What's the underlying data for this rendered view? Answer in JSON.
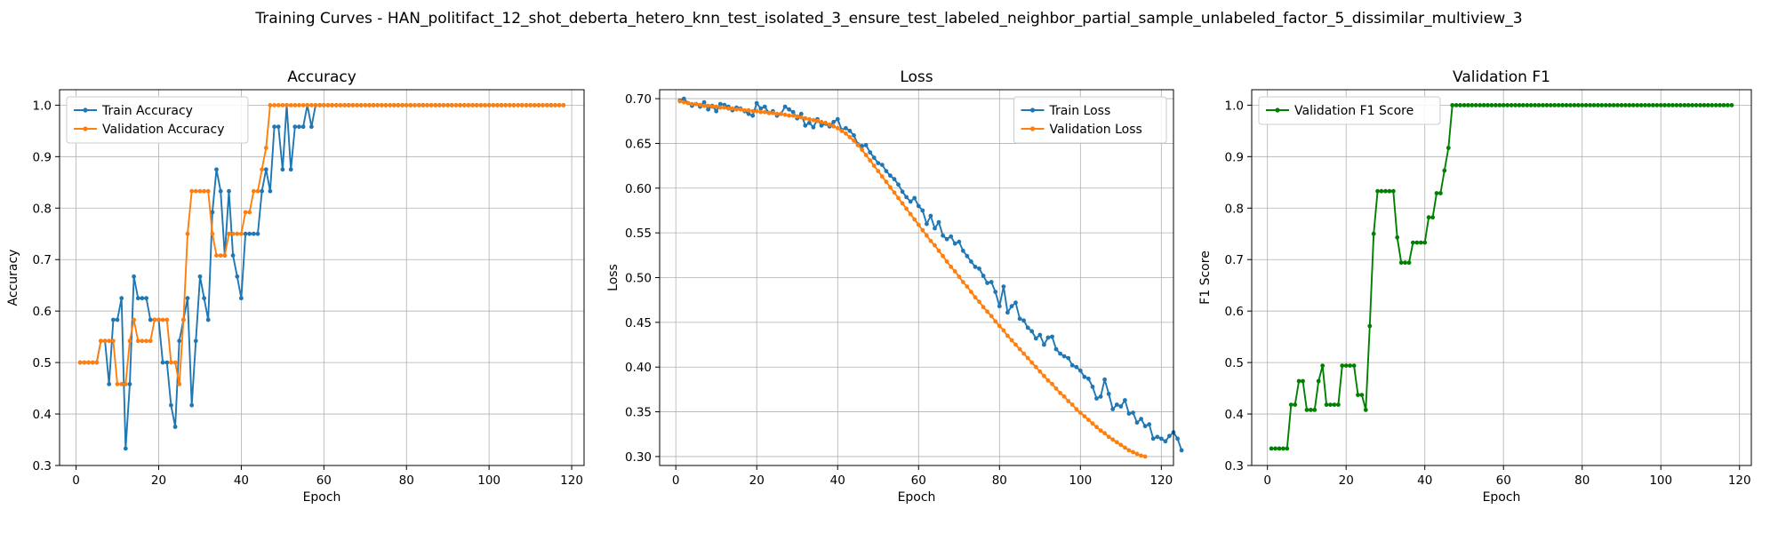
{
  "figure_title": "Training Curves - HAN_politifact_12_shot_deberta_hetero_knn_test_isolated_3_ensure_test_labeled_neighbor_partial_sample_unlabeled_factor_5_dissimilar_multiview_3",
  "colors": {
    "blue": "#1f77b4",
    "orange": "#ff7f0e",
    "green": "#008000",
    "grid": "#b0b0b0"
  },
  "chart_data": [
    {
      "type": "line",
      "title": "Accuracy",
      "xlabel": "Epoch",
      "ylabel": "Accuracy",
      "xlim": [
        -4,
        123
      ],
      "ylim": [
        0.3,
        1.03
      ],
      "xticks": [
        0,
        20,
        40,
        60,
        80,
        100,
        120
      ],
      "yticks": [
        0.3,
        0.4,
        0.5,
        0.6,
        0.7,
        0.8,
        0.9,
        1.0
      ],
      "ytick_labels": [
        "0.3",
        "0.4",
        "0.5",
        "0.6",
        "0.7",
        "0.8",
        "0.9",
        "1.0"
      ],
      "grid": true,
      "legend_position": "upper-left",
      "series": [
        {
          "name": "Train Accuracy",
          "color": "#1f77b4",
          "x_start": 1,
          "values": [
            0.5,
            0.5,
            0.5,
            0.5,
            0.5,
            0.542,
            0.542,
            0.458,
            0.583,
            0.583,
            0.625,
            0.333,
            0.458,
            0.667,
            0.625,
            0.625,
            0.625,
            0.583,
            0.583,
            0.583,
            0.5,
            0.5,
            0.417,
            0.375,
            0.542,
            0.583,
            0.625,
            0.417,
            0.542,
            0.667,
            0.625,
            0.583,
            0.792,
            0.875,
            0.833,
            0.708,
            0.833,
            0.708,
            0.667,
            0.625,
            0.75,
            0.75,
            0.75,
            0.75,
            0.833,
            0.875,
            0.833,
            0.958,
            0.958,
            0.875,
            1.0,
            0.875,
            0.958,
            0.958,
            0.958,
            1.0,
            0.958,
            1.0,
            1.0,
            1.0,
            1.0,
            1.0,
            1.0,
            1.0,
            1.0,
            1.0,
            1.0,
            1.0,
            1.0,
            1.0,
            1.0,
            1.0,
            1.0,
            1.0,
            1.0,
            1.0,
            1.0,
            1.0,
            1.0,
            1.0,
            1.0,
            1.0,
            1.0,
            1.0,
            1.0,
            1.0,
            1.0,
            1.0,
            1.0,
            1.0,
            1.0,
            1.0,
            1.0,
            1.0,
            1.0,
            1.0,
            1.0,
            1.0,
            1.0,
            1.0,
            1.0,
            1.0,
            1.0,
            1.0,
            1.0,
            1.0,
            1.0,
            1.0,
            1.0,
            1.0,
            1.0,
            1.0,
            1.0,
            1.0,
            1.0,
            1.0,
            1.0,
            1.0
          ]
        },
        {
          "name": "Validation Accuracy",
          "color": "#ff7f0e",
          "x_start": 1,
          "values": [
            0.5,
            0.5,
            0.5,
            0.5,
            0.5,
            0.542,
            0.542,
            0.542,
            0.542,
            0.458,
            0.458,
            0.458,
            0.542,
            0.583,
            0.542,
            0.542,
            0.542,
            0.542,
            0.583,
            0.583,
            0.583,
            0.583,
            0.5,
            0.5,
            0.458,
            0.583,
            0.75,
            0.833,
            0.833,
            0.833,
            0.833,
            0.833,
            0.75,
            0.708,
            0.708,
            0.708,
            0.75,
            0.75,
            0.75,
            0.75,
            0.792,
            0.792,
            0.833,
            0.833,
            0.875,
            0.917,
            1.0,
            1.0,
            1.0,
            1.0,
            1.0,
            1.0,
            1.0,
            1.0,
            1.0,
            1.0,
            1.0,
            1.0,
            1.0,
            1.0,
            1.0,
            1.0,
            1.0,
            1.0,
            1.0,
            1.0,
            1.0,
            1.0,
            1.0,
            1.0,
            1.0,
            1.0,
            1.0,
            1.0,
            1.0,
            1.0,
            1.0,
            1.0,
            1.0,
            1.0,
            1.0,
            1.0,
            1.0,
            1.0,
            1.0,
            1.0,
            1.0,
            1.0,
            1.0,
            1.0,
            1.0,
            1.0,
            1.0,
            1.0,
            1.0,
            1.0,
            1.0,
            1.0,
            1.0,
            1.0,
            1.0,
            1.0,
            1.0,
            1.0,
            1.0,
            1.0,
            1.0,
            1.0,
            1.0,
            1.0,
            1.0,
            1.0,
            1.0,
            1.0,
            1.0,
            1.0,
            1.0,
            1.0
          ]
        }
      ]
    },
    {
      "type": "line",
      "title": "Loss",
      "xlabel": "Epoch",
      "ylabel": "Loss",
      "xlim": [
        -4,
        123
      ],
      "ylim": [
        0.29,
        0.71
      ],
      "xticks": [
        0,
        20,
        40,
        60,
        80,
        100,
        120
      ],
      "yticks": [
        0.3,
        0.35,
        0.4,
        0.45,
        0.5,
        0.55,
        0.6,
        0.65,
        0.7
      ],
      "ytick_labels": [
        "0.30",
        "0.35",
        "0.40",
        "0.45",
        "0.50",
        "0.55",
        "0.60",
        "0.65",
        "0.70"
      ],
      "grid": true,
      "legend_position": "upper-right",
      "series": [
        {
          "name": "Train Loss",
          "color": "#1f77b4",
          "x_start": 1,
          "values": [
            0.698,
            0.7,
            0.695,
            0.692,
            0.694,
            0.691,
            0.696,
            0.688,
            0.692,
            0.686,
            0.694,
            0.693,
            0.691,
            0.687,
            0.69,
            0.689,
            0.686,
            0.683,
            0.681,
            0.695,
            0.689,
            0.691,
            0.684,
            0.686,
            0.681,
            0.683,
            0.691,
            0.688,
            0.685,
            0.678,
            0.683,
            0.67,
            0.673,
            0.668,
            0.677,
            0.67,
            0.672,
            0.669,
            0.674,
            0.677,
            0.665,
            0.667,
            0.664,
            0.659,
            0.649,
            0.647,
            0.648,
            0.64,
            0.634,
            0.628,
            0.626,
            0.619,
            0.614,
            0.61,
            0.604,
            0.596,
            0.59,
            0.585,
            0.589,
            0.58,
            0.575,
            0.56,
            0.569,
            0.555,
            0.562,
            0.547,
            0.543,
            0.546,
            0.538,
            0.54,
            0.53,
            0.524,
            0.518,
            0.512,
            0.51,
            0.502,
            0.494,
            0.495,
            0.484,
            0.468,
            0.49,
            0.461,
            0.468,
            0.472,
            0.454,
            0.452,
            0.444,
            0.44,
            0.432,
            0.436,
            0.425,
            0.433,
            0.434,
            0.42,
            0.415,
            0.412,
            0.41,
            0.402,
            0.4,
            0.396,
            0.389,
            0.387,
            0.378,
            0.365,
            0.367,
            0.386,
            0.37,
            0.353,
            0.358,
            0.356,
            0.363,
            0.348,
            0.349,
            0.338,
            0.342,
            0.334,
            0.336,
            0.32,
            0.322,
            0.32,
            0.317,
            0.323,
            0.327,
            0.32,
            0.307
          ]
        },
        {
          "name": "Validation Loss",
          "color": "#ff7f0e",
          "x_start": 1,
          "values": [
            0.697,
            0.696,
            0.695,
            0.694,
            0.694,
            0.693,
            0.692,
            0.692,
            0.691,
            0.691,
            0.69,
            0.69,
            0.689,
            0.689,
            0.688,
            0.688,
            0.687,
            0.687,
            0.686,
            0.686,
            0.685,
            0.685,
            0.684,
            0.684,
            0.683,
            0.683,
            0.682,
            0.681,
            0.681,
            0.68,
            0.679,
            0.678,
            0.677,
            0.676,
            0.675,
            0.674,
            0.673,
            0.671,
            0.669,
            0.667,
            0.664,
            0.661,
            0.657,
            0.653,
            0.648,
            0.643,
            0.637,
            0.631,
            0.625,
            0.619,
            0.613,
            0.607,
            0.601,
            0.595,
            0.589,
            0.583,
            0.577,
            0.571,
            0.565,
            0.559,
            0.553,
            0.547,
            0.541,
            0.536,
            0.53,
            0.524,
            0.518,
            0.512,
            0.507,
            0.501,
            0.495,
            0.49,
            0.484,
            0.478,
            0.473,
            0.467,
            0.462,
            0.457,
            0.451,
            0.446,
            0.441,
            0.435,
            0.43,
            0.425,
            0.42,
            0.415,
            0.41,
            0.405,
            0.4,
            0.395,
            0.39,
            0.385,
            0.381,
            0.376,
            0.371,
            0.367,
            0.362,
            0.358,
            0.353,
            0.349,
            0.345,
            0.341,
            0.337,
            0.333,
            0.329,
            0.326,
            0.322,
            0.319,
            0.316,
            0.313,
            0.31,
            0.307,
            0.305,
            0.303,
            0.301,
            0.3
          ]
        }
      ]
    },
    {
      "type": "line",
      "title": "Validation F1",
      "xlabel": "Epoch",
      "ylabel": "F1 Score",
      "xlim": [
        -4,
        123
      ],
      "ylim": [
        0.3,
        1.03
      ],
      "xticks": [
        0,
        20,
        40,
        60,
        80,
        100,
        120
      ],
      "yticks": [
        0.3,
        0.4,
        0.5,
        0.6,
        0.7,
        0.8,
        0.9,
        1.0
      ],
      "ytick_labels": [
        "0.3",
        "0.4",
        "0.5",
        "0.6",
        "0.7",
        "0.8",
        "0.9",
        "1.0"
      ],
      "grid": true,
      "legend_position": "upper-left",
      "series": [
        {
          "name": "Validation F1 Score",
          "color": "#008000",
          "x_start": 1,
          "values": [
            0.333,
            0.333,
            0.333,
            0.333,
            0.333,
            0.418,
            0.418,
            0.464,
            0.464,
            0.408,
            0.408,
            0.408,
            0.464,
            0.494,
            0.418,
            0.418,
            0.418,
            0.418,
            0.494,
            0.494,
            0.494,
            0.494,
            0.437,
            0.437,
            0.408,
            0.571,
            0.75,
            0.833,
            0.833,
            0.833,
            0.833,
            0.833,
            0.743,
            0.694,
            0.694,
            0.694,
            0.733,
            0.733,
            0.733,
            0.733,
            0.782,
            0.782,
            0.829,
            0.829,
            0.873,
            0.917,
            1.0,
            1.0,
            1.0,
            1.0,
            1.0,
            1.0,
            1.0,
            1.0,
            1.0,
            1.0,
            1.0,
            1.0,
            1.0,
            1.0,
            1.0,
            1.0,
            1.0,
            1.0,
            1.0,
            1.0,
            1.0,
            1.0,
            1.0,
            1.0,
            1.0,
            1.0,
            1.0,
            1.0,
            1.0,
            1.0,
            1.0,
            1.0,
            1.0,
            1.0,
            1.0,
            1.0,
            1.0,
            1.0,
            1.0,
            1.0,
            1.0,
            1.0,
            1.0,
            1.0,
            1.0,
            1.0,
            1.0,
            1.0,
            1.0,
            1.0,
            1.0,
            1.0,
            1.0,
            1.0,
            1.0,
            1.0,
            1.0,
            1.0,
            1.0,
            1.0,
            1.0,
            1.0,
            1.0,
            1.0,
            1.0,
            1.0,
            1.0,
            1.0,
            1.0,
            1.0,
            1.0,
            1.0
          ]
        }
      ]
    }
  ]
}
